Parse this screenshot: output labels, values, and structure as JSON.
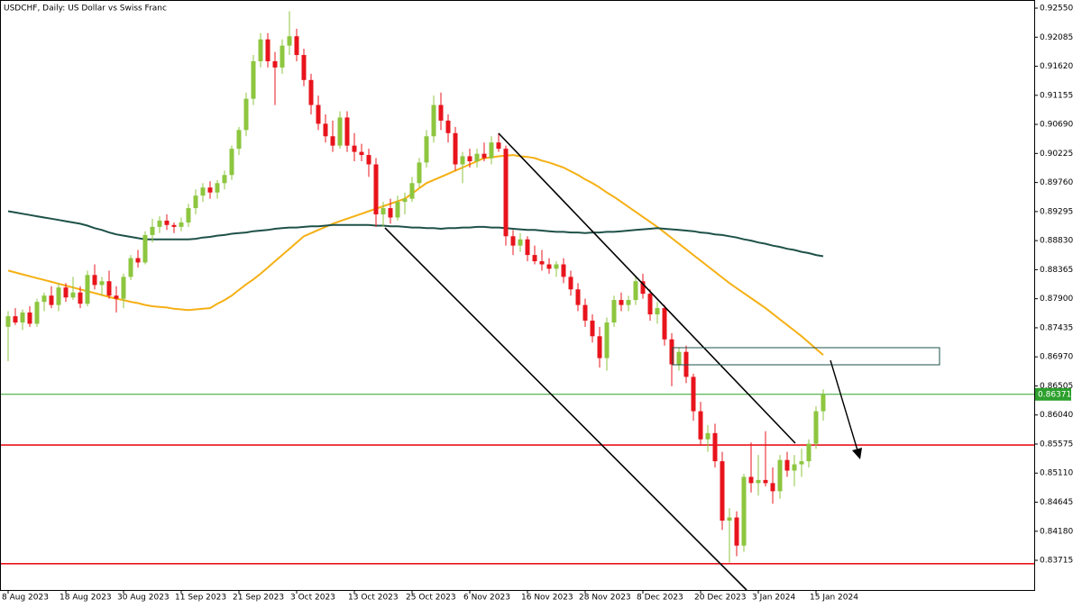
{
  "chart_data": {
    "type": "candlestick",
    "title": "USDCHF, Daily:  US Dollar vs Swiss Franc",
    "up_color": "#8dc63f",
    "down_color": "#e8141c",
    "ylim": [
      0.8324,
      0.9268
    ],
    "yticks": [
      {
        "value": 0.9255,
        "label": "0.92550"
      },
      0.92085,
      {
        "value": 0.9162,
        "label": "0.91620"
      },
      0.91155,
      {
        "value": 0.9069,
        "label": "0.90690"
      },
      0.90225,
      {
        "value": 0.8976,
        "label": "0.89760"
      },
      0.89295,
      {
        "value": 0.8883,
        "label": "0.88830"
      },
      0.88365,
      {
        "value": 0.879,
        "label": "0.87900"
      },
      0.87435,
      {
        "value": 0.8697,
        "label": "0.86970"
      },
      0.86505,
      {
        "value": 0.8604,
        "label": "0.86040"
      },
      0.85575,
      {
        "value": 0.8511,
        "label": "0.85110"
      },
      0.84645,
      {
        "value": 0.8418,
        "label": "0.84180"
      },
      0.83715
    ],
    "categories": [
      "8 Aug 2023",
      null,
      null,
      null,
      null,
      null,
      null,
      null,
      "18 Aug 2023",
      null,
      null,
      null,
      null,
      null,
      null,
      null,
      "30 Aug 2023",
      null,
      null,
      null,
      null,
      null,
      null,
      null,
      "11 Sep 2023",
      null,
      null,
      null,
      null,
      null,
      null,
      null,
      "21 Sep 2023",
      null,
      null,
      null,
      null,
      null,
      null,
      null,
      "3 Oct 2023",
      null,
      null,
      null,
      null,
      null,
      null,
      null,
      "13 Oct 2023",
      null,
      null,
      null,
      null,
      null,
      null,
      null,
      "25 Oct 2023",
      null,
      null,
      null,
      null,
      null,
      null,
      null,
      "6 Nov 2023",
      null,
      null,
      null,
      null,
      null,
      null,
      null,
      "16 Nov 2023",
      null,
      null,
      null,
      null,
      null,
      null,
      null,
      "28 Nov 2023",
      null,
      null,
      null,
      null,
      null,
      null,
      null,
      "8 Dec 2023",
      null,
      null,
      null,
      null,
      null,
      null,
      null,
      "20 Dec 2023",
      null,
      null,
      null,
      null,
      null,
      null,
      null,
      "3 Jan 2024",
      null,
      null,
      null,
      null,
      null,
      null,
      null,
      "15 Jan 2024",
      null
    ],
    "ohlc": [
      [
        0.8745,
        0.877,
        0.869,
        0.8762
      ],
      [
        0.8762,
        0.8775,
        0.8748,
        0.8752
      ],
      [
        0.8752,
        0.8773,
        0.874,
        0.8768
      ],
      [
        0.8768,
        0.8778,
        0.8745,
        0.875
      ],
      [
        0.875,
        0.879,
        0.8745,
        0.8785
      ],
      [
        0.8785,
        0.88,
        0.877,
        0.8795
      ],
      [
        0.8795,
        0.881,
        0.8775,
        0.878
      ],
      [
        0.878,
        0.8815,
        0.877,
        0.8808
      ],
      [
        0.8808,
        0.8815,
        0.8785,
        0.8792
      ],
      [
        0.8792,
        0.8825,
        0.8788,
        0.88
      ],
      [
        0.88,
        0.881,
        0.8775,
        0.8782
      ],
      [
        0.8782,
        0.8835,
        0.8778,
        0.8828
      ],
      [
        0.8828,
        0.8845,
        0.8805,
        0.8812
      ],
      [
        0.8812,
        0.8825,
        0.8795,
        0.8818
      ],
      [
        0.8818,
        0.8835,
        0.879,
        0.8795
      ],
      [
        0.8795,
        0.881,
        0.8768,
        0.879
      ],
      [
        0.879,
        0.883,
        0.8775,
        0.8825
      ],
      [
        0.8825,
        0.886,
        0.882,
        0.8855
      ],
      [
        0.8855,
        0.8868,
        0.884,
        0.8848
      ],
      [
        0.8848,
        0.8898,
        0.8845,
        0.8892
      ],
      [
        0.8892,
        0.8918,
        0.888,
        0.8905
      ],
      [
        0.8905,
        0.8922,
        0.8895,
        0.8915
      ],
      [
        0.8915,
        0.8925,
        0.89,
        0.8908
      ],
      [
        0.8908,
        0.8912,
        0.8895,
        0.8905
      ],
      [
        0.8905,
        0.892,
        0.8898,
        0.8912
      ],
      [
        0.8912,
        0.8942,
        0.8905,
        0.8935
      ],
      [
        0.8935,
        0.8965,
        0.8925,
        0.8955
      ],
      [
        0.8955,
        0.8975,
        0.8945,
        0.8968
      ],
      [
        0.8968,
        0.8978,
        0.895,
        0.896
      ],
      [
        0.896,
        0.898,
        0.895,
        0.8975
      ],
      [
        0.8975,
        0.8995,
        0.8965,
        0.8988
      ],
      [
        0.8988,
        0.9035,
        0.898,
        0.903
      ],
      [
        0.903,
        0.9065,
        0.902,
        0.906
      ],
      [
        0.906,
        0.912,
        0.905,
        0.911
      ],
      [
        0.911,
        0.918,
        0.91,
        0.917
      ],
      [
        0.917,
        0.9215,
        0.916,
        0.9205
      ],
      [
        0.9205,
        0.9215,
        0.916,
        0.917
      ],
      [
        0.917,
        0.9185,
        0.91,
        0.916
      ],
      [
        0.916,
        0.9205,
        0.915,
        0.9195
      ],
      [
        0.9195,
        0.925,
        0.918,
        0.921
      ],
      [
        0.921,
        0.9222,
        0.917,
        0.918
      ],
      [
        0.918,
        0.919,
        0.913,
        0.914
      ],
      [
        0.914,
        0.915,
        0.9085,
        0.91
      ],
      [
        0.91,
        0.9115,
        0.906,
        0.907
      ],
      [
        0.907,
        0.9085,
        0.904,
        0.905
      ],
      [
        0.905,
        0.9075,
        0.9025,
        0.9035
      ],
      [
        0.9035,
        0.909,
        0.903,
        0.908
      ],
      [
        0.908,
        0.909,
        0.9025,
        0.9035
      ],
      [
        0.9035,
        0.9055,
        0.901,
        0.9025
      ],
      [
        0.9025,
        0.9038,
        0.901,
        0.902
      ],
      [
        0.902,
        0.903,
        0.8985,
        0.9005
      ],
      [
        0.9005,
        0.9015,
        0.8905,
        0.8925
      ],
      [
        0.8925,
        0.8945,
        0.8905,
        0.8935
      ],
      [
        0.8935,
        0.895,
        0.891,
        0.892
      ],
      [
        0.892,
        0.8955,
        0.8915,
        0.8945
      ],
      [
        0.8945,
        0.896,
        0.8925,
        0.895
      ],
      [
        0.895,
        0.8985,
        0.8945,
        0.8975
      ],
      [
        0.8975,
        0.9015,
        0.8968,
        0.9008
      ],
      [
        0.9008,
        0.906,
        0.9,
        0.905
      ],
      [
        0.905,
        0.9115,
        0.904,
        0.91
      ],
      [
        0.91,
        0.912,
        0.906,
        0.9075
      ],
      [
        0.9075,
        0.9085,
        0.904,
        0.9055
      ],
      [
        0.9055,
        0.9065,
        0.8995,
        0.9005
      ],
      [
        0.9005,
        0.9025,
        0.8975,
        0.9018
      ],
      [
        0.9018,
        0.903,
        0.9,
        0.901
      ],
      [
        0.901,
        0.903,
        0.9,
        0.9022
      ],
      [
        0.9022,
        0.904,
        0.901,
        0.9015
      ],
      [
        0.9015,
        0.905,
        0.9005,
        0.904
      ],
      [
        0.904,
        0.9055,
        0.9025,
        0.903
      ],
      [
        0.903,
        0.9035,
        0.8875,
        0.889
      ],
      [
        0.889,
        0.89,
        0.886,
        0.8875
      ],
      [
        0.8875,
        0.8895,
        0.8865,
        0.8885
      ],
      [
        0.8885,
        0.889,
        0.885,
        0.886
      ],
      [
        0.886,
        0.8875,
        0.8845,
        0.885
      ],
      [
        0.885,
        0.8868,
        0.8835,
        0.8845
      ],
      [
        0.8845,
        0.8855,
        0.883,
        0.8838
      ],
      [
        0.8838,
        0.885,
        0.8825,
        0.8845
      ],
      [
        0.8845,
        0.8855,
        0.8815,
        0.8825
      ],
      [
        0.8825,
        0.8835,
        0.8795,
        0.8805
      ],
      [
        0.8805,
        0.8815,
        0.877,
        0.878
      ],
      [
        0.878,
        0.879,
        0.8745,
        0.8755
      ],
      [
        0.8755,
        0.8765,
        0.872,
        0.873
      ],
      [
        0.873,
        0.8745,
        0.868,
        0.8695
      ],
      [
        0.8695,
        0.876,
        0.8675,
        0.8752
      ],
      [
        0.8752,
        0.8795,
        0.8745,
        0.8788
      ],
      [
        0.8788,
        0.88,
        0.877,
        0.878
      ],
      [
        0.878,
        0.8795,
        0.877,
        0.8788
      ],
      [
        0.8788,
        0.8825,
        0.878,
        0.8818
      ],
      [
        0.8818,
        0.883,
        0.879,
        0.8798
      ],
      [
        0.8798,
        0.8805,
        0.8755,
        0.8765
      ],
      [
        0.8765,
        0.8785,
        0.875,
        0.8775
      ],
      [
        0.8775,
        0.878,
        0.8715,
        0.8725
      ],
      [
        0.8725,
        0.8735,
        0.865,
        0.8685
      ],
      [
        0.8685,
        0.8712,
        0.8675,
        0.8705
      ],
      [
        0.8705,
        0.8715,
        0.8655,
        0.8665
      ],
      [
        0.8665,
        0.867,
        0.8595,
        0.861
      ],
      [
        0.861,
        0.8625,
        0.8555,
        0.8565
      ],
      [
        0.8565,
        0.8588,
        0.8545,
        0.8575
      ],
      [
        0.8575,
        0.859,
        0.852,
        0.853
      ],
      [
        0.853,
        0.8545,
        0.842,
        0.8435
      ],
      [
        0.8435,
        0.8455,
        0.8368,
        0.844
      ],
      [
        0.844,
        0.845,
        0.8378,
        0.8395
      ],
      [
        0.8395,
        0.851,
        0.8385,
        0.8505
      ],
      [
        0.8505,
        0.856,
        0.848,
        0.8495
      ],
      [
        0.8495,
        0.854,
        0.8475,
        0.85
      ],
      [
        0.85,
        0.8578,
        0.849,
        0.8495
      ],
      [
        0.8495,
        0.852,
        0.8462,
        0.8482
      ],
      [
        0.8482,
        0.854,
        0.847,
        0.8532
      ],
      [
        0.8532,
        0.8545,
        0.8505,
        0.8515
      ],
      [
        0.8515,
        0.854,
        0.849,
        0.8525
      ],
      [
        0.8525,
        0.855,
        0.8505,
        0.853
      ],
      [
        0.853,
        0.8565,
        0.852,
        0.8558
      ],
      [
        0.8558,
        0.8618,
        0.855,
        0.861
      ],
      [
        0.861,
        0.8645,
        0.8595,
        0.86371
      ]
    ],
    "series": [
      {
        "color": "#f5b014",
        "values": [
          0.8835,
          0.8832,
          0.8829,
          0.8826,
          0.8823,
          0.882,
          0.8817,
          0.8814,
          0.8811,
          0.8808,
          0.8805,
          0.8802,
          0.8799,
          0.8796,
          0.8793,
          0.879,
          0.8788,
          0.8785,
          0.8783,
          0.878,
          0.8778,
          0.8777,
          0.8776,
          0.8774,
          0.8773,
          0.8772,
          0.8773,
          0.8774,
          0.8775,
          0.8782,
          0.8788,
          0.8795,
          0.8804,
          0.8813,
          0.8821,
          0.883,
          0.884,
          0.885,
          0.886,
          0.887,
          0.888,
          0.889,
          0.8895,
          0.89,
          0.8905,
          0.891,
          0.8914,
          0.8918,
          0.8922,
          0.8926,
          0.893,
          0.8934,
          0.8938,
          0.8942,
          0.8946,
          0.895,
          0.8958,
          0.8967,
          0.8975,
          0.898,
          0.8985,
          0.899,
          0.8995,
          0.9,
          0.9005,
          0.901,
          0.9015,
          0.9016,
          0.9018,
          0.9019,
          0.902,
          0.9018,
          0.9017,
          0.9015,
          0.9011,
          0.9008,
          0.9004,
          0.9,
          0.8994,
          0.8988,
          0.8981,
          0.8975,
          0.8968,
          0.896,
          0.8953,
          0.8945,
          0.8937,
          0.8929,
          0.8921,
          0.8913,
          0.8905,
          0.8896,
          0.8887,
          0.8878,
          0.8869,
          0.886,
          0.8851,
          0.8842,
          0.8833,
          0.8824,
          0.8815,
          0.8807,
          0.8799,
          0.8791,
          0.8783,
          0.8775,
          0.8766,
          0.8757,
          0.8748,
          0.8739,
          0.873,
          0.872,
          0.871,
          0.87
        ]
      },
      {
        "color": "#1e5148",
        "values": [
          0.893,
          0.8928,
          0.8926,
          0.8924,
          0.8922,
          0.892,
          0.8918,
          0.8916,
          0.8914,
          0.8912,
          0.891,
          0.8907,
          0.8903,
          0.89,
          0.8896,
          0.8893,
          0.8891,
          0.8889,
          0.8887,
          0.8885,
          0.8885,
          0.8885,
          0.8885,
          0.8885,
          0.8885,
          0.8885,
          0.8886,
          0.8888,
          0.8889,
          0.8891,
          0.8892,
          0.8894,
          0.8895,
          0.8896,
          0.8898,
          0.8899,
          0.89,
          0.8902,
          0.8903,
          0.8904,
          0.8904,
          0.8905,
          0.8906,
          0.8906,
          0.8907,
          0.8908,
          0.8908,
          0.8908,
          0.8908,
          0.8908,
          0.8908,
          0.8907,
          0.8907,
          0.8906,
          0.8906,
          0.8905,
          0.8904,
          0.8904,
          0.8903,
          0.8903,
          0.8902,
          0.8903,
          0.8903,
          0.8904,
          0.8904,
          0.8905,
          0.8905,
          0.8904,
          0.8904,
          0.8903,
          0.8902,
          0.8901,
          0.89,
          0.89,
          0.8899,
          0.8898,
          0.8897,
          0.8897,
          0.8896,
          0.8896,
          0.8895,
          0.8896,
          0.8896,
          0.8897,
          0.8897,
          0.8898,
          0.8899,
          0.89,
          0.8901,
          0.8902,
          0.8903,
          0.8902,
          0.8901,
          0.89,
          0.8899,
          0.8898,
          0.8896,
          0.8895,
          0.8893,
          0.8892,
          0.889,
          0.8888,
          0.8885,
          0.8883,
          0.888,
          0.8878,
          0.8875,
          0.8873,
          0.887,
          0.8868,
          0.8865,
          0.8863,
          0.886,
          0.8858
        ]
      }
    ],
    "levels": [
      {
        "value": 0.86371,
        "color": "#2ca02c"
      },
      {
        "value": 0.8556,
        "color": "#e8141c"
      },
      {
        "value": 0.8366,
        "color": "#e8141c"
      }
    ]
  }
}
